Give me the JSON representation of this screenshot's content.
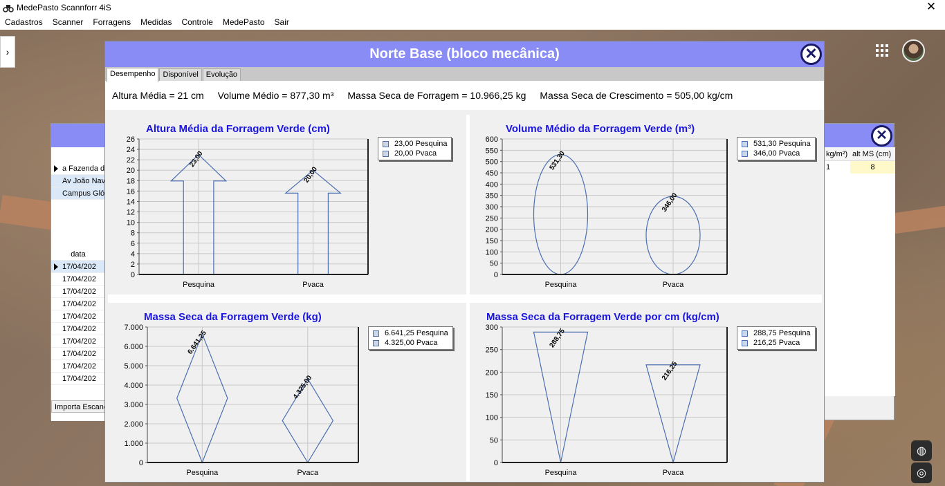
{
  "window": {
    "title": "MedePasto Scannforr 4iS",
    "close_glyph": "✕"
  },
  "menu": [
    "Cadastros",
    "Scanner",
    "Forragens",
    "Medidas",
    "Controle",
    "MedePasto",
    "Sair"
  ],
  "background_dialog": {
    "rows": [
      "a Fazenda de",
      "Av João Nav",
      "Campus Glór"
    ],
    "data_header": "data",
    "dates": [
      "17/04/202",
      "17/04/202",
      "17/04/202",
      "17/04/202",
      "17/04/202",
      "17/04/202",
      "17/04/202",
      "17/04/202",
      "17/04/202",
      "17/04/202"
    ],
    "button": "Importa Escane",
    "right_headers": [
      "kg/m²)",
      "alt MS (cm)"
    ],
    "right_values": [
      "1",
      "8"
    ]
  },
  "dialog": {
    "title": "Norte Base (bloco mecânica)",
    "tabs": [
      "Desempenho",
      "Disponível",
      "Evolução"
    ],
    "active_tab": 0,
    "summary": [
      "Altura Média = 21 cm",
      "Volume Médio = 877,30 m³",
      "Massa Seca de Forragem = 10.966,25 kg",
      "Massa Seca de Crescimento = 505,00 kg/cm"
    ]
  },
  "colors": {
    "title_bar": "#8a8cf5",
    "chart_title": "#1a14e0",
    "shape_stroke": "#4a6eb0"
  },
  "chart_data": [
    {
      "type": "bar",
      "shape": "arrow",
      "title": "Altura Média da Forragem Verde (cm)",
      "categories": [
        "Pesquina",
        "Pvaca"
      ],
      "values": [
        23,
        20
      ],
      "value_labels": [
        "23,00",
        "20,00"
      ],
      "legend": [
        "23,00 Pesquina",
        "20,00 Pvaca"
      ],
      "yticks": [
        "0",
        "2",
        "4",
        "6",
        "8",
        "10",
        "12",
        "14",
        "16",
        "18",
        "20",
        "22",
        "24",
        "26"
      ],
      "ylim": [
        0,
        26
      ],
      "grid": true,
      "legend_position": "top-right"
    },
    {
      "type": "bar",
      "shape": "ellipse",
      "title": "Volume Médio da Forragem Verde (m³)",
      "categories": [
        "Pesquina",
        "Pvaca"
      ],
      "values": [
        531.3,
        346
      ],
      "value_labels": [
        "531,30",
        "346,00"
      ],
      "legend": [
        "531,30 Pesquina",
        "346,00 Pvaca"
      ],
      "yticks": [
        "0",
        "50",
        "100",
        "150",
        "200",
        "250",
        "300",
        "350",
        "400",
        "450",
        "500",
        "550",
        "600"
      ],
      "ylim": [
        0,
        600
      ],
      "grid": true,
      "legend_position": "top-right"
    },
    {
      "type": "bar",
      "shape": "diamond",
      "title": "Massa Seca da Forragem Verde (kg)",
      "categories": [
        "Pesquina",
        "Pvaca"
      ],
      "values": [
        6641.25,
        4325
      ],
      "value_labels": [
        "6.641,25",
        "4.325,00"
      ],
      "legend": [
        "6.641,25 Pesquina",
        "4.325,00 Pvaca"
      ],
      "yticks": [
        "0",
        "1.000",
        "2.000",
        "3.000",
        "4.000",
        "5.000",
        "6.000",
        "7.000"
      ],
      "ylim": [
        0,
        7000
      ],
      "grid": true,
      "legend_position": "top-right"
    },
    {
      "type": "bar",
      "shape": "inverted-triangle",
      "title": "Massa Seca da Forragem Verde por cm (kg/cm)",
      "categories": [
        "Pesquina",
        "Pvaca"
      ],
      "values": [
        288.75,
        216.25
      ],
      "value_labels": [
        "288,75",
        "216,25"
      ],
      "legend": [
        "288,75 Pesquina",
        "216,25 Pvaca"
      ],
      "yticks": [
        "0",
        "50",
        "100",
        "150",
        "200",
        "250",
        "300"
      ],
      "ylim": [
        0,
        300
      ],
      "grid": true,
      "legend_position": "top-right"
    }
  ]
}
